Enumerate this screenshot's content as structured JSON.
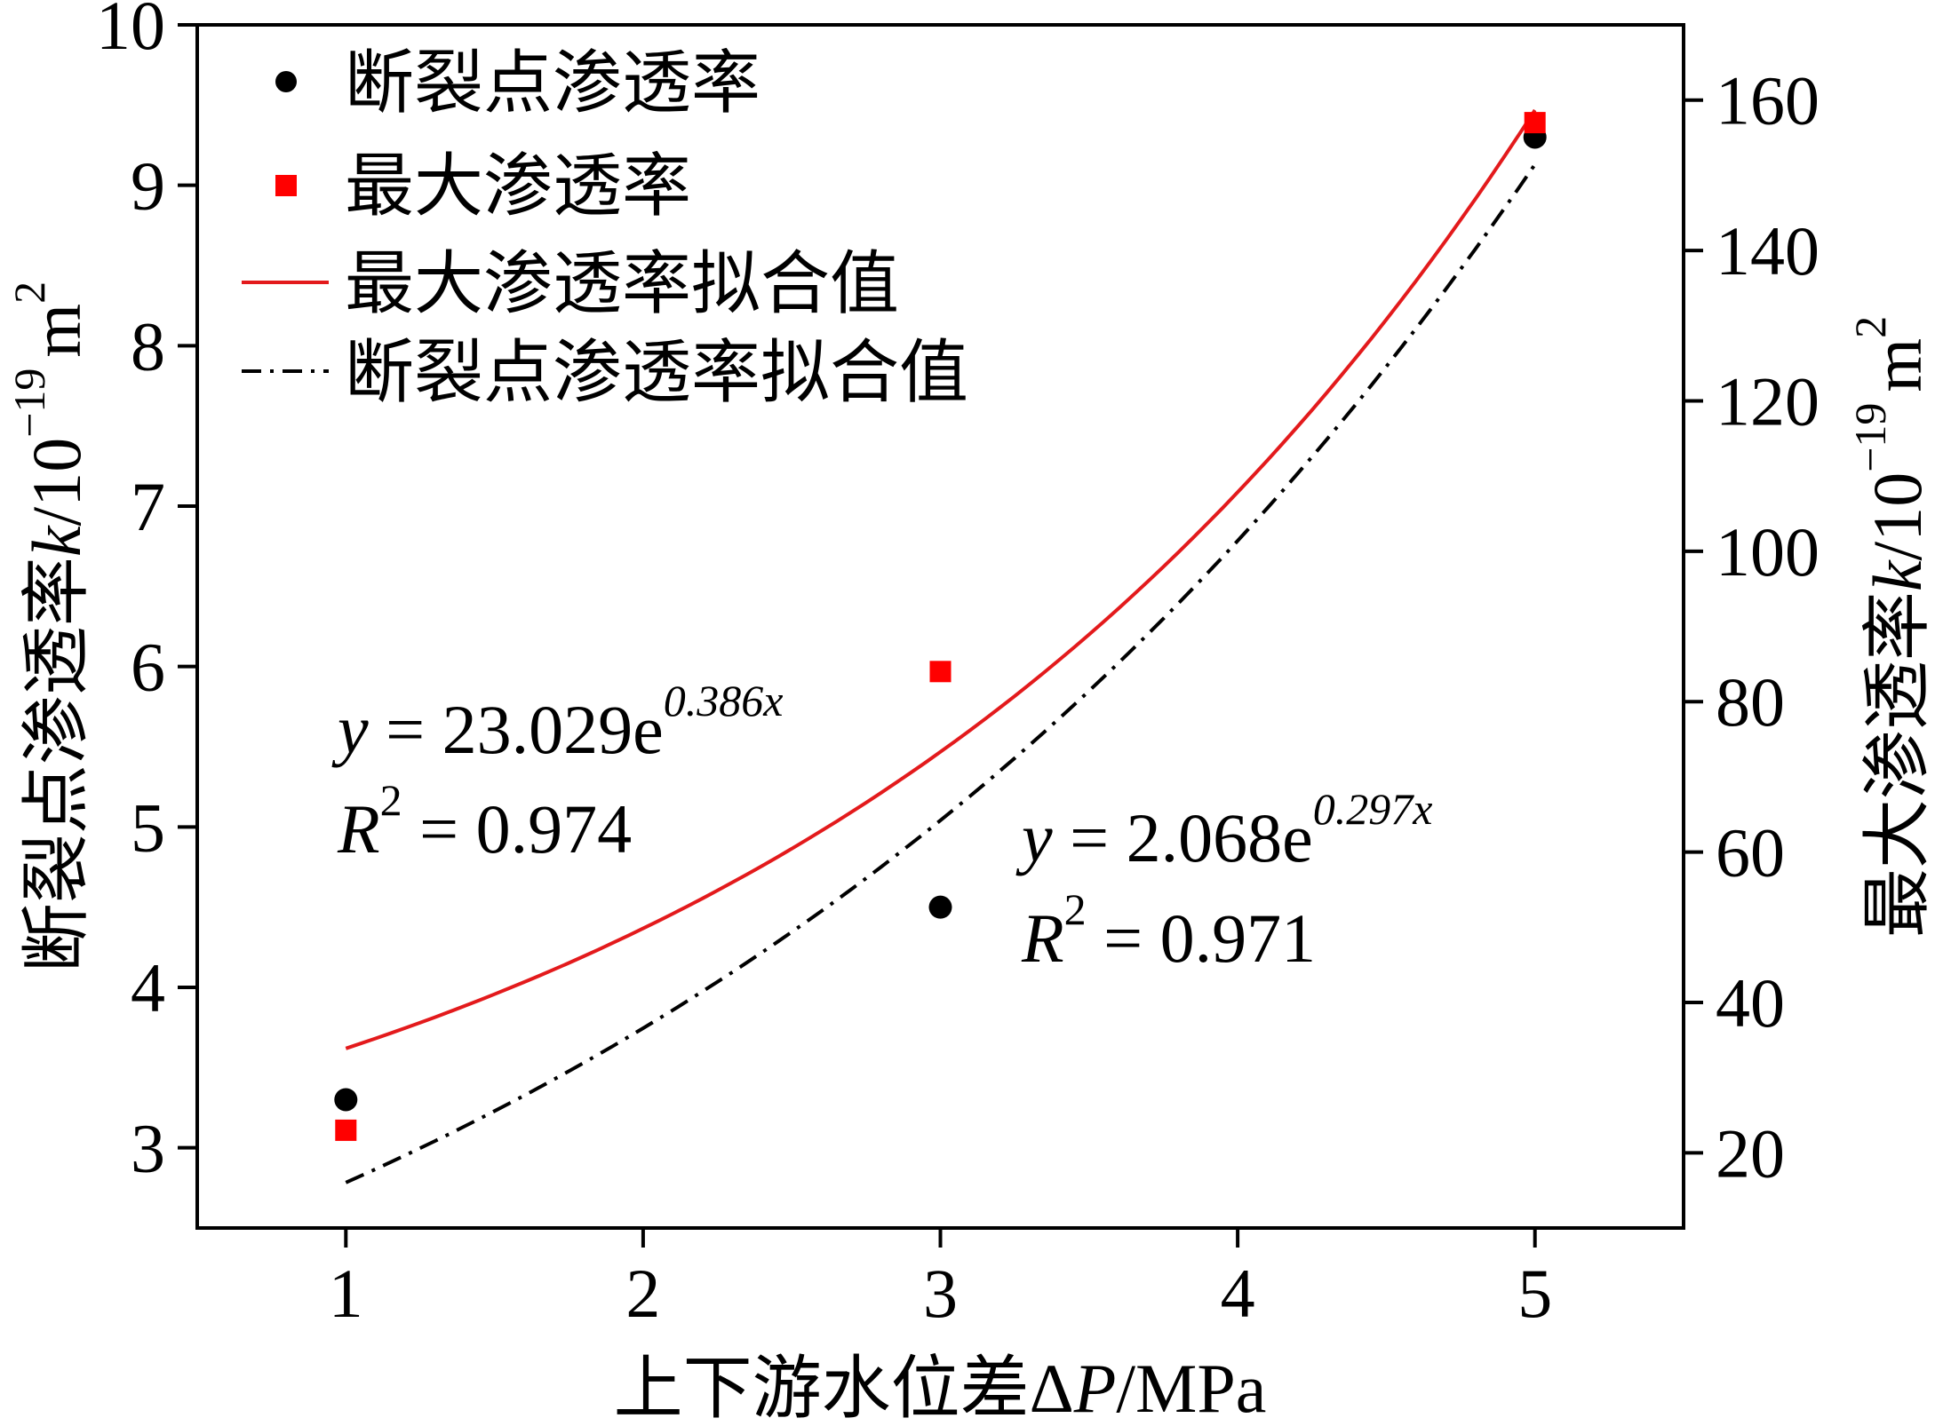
{
  "chart_data": {
    "type": "scatter",
    "xlabel_prefix": "上下游水位差Δ",
    "xlabel_var": "P",
    "xlabel_unit": "/MPa",
    "ylabel_left_prefix": "断裂点渗透率",
    "ylabel_left_var": "k",
    "ylabel_left_unit": "/10",
    "ylabel_left_exp": "−19",
    "ylabel_left_m": "m",
    "ylabel_left_m_exp": "2",
    "ylabel_right_prefix": "最大渗透率",
    "ylabel_right_var": "k",
    "ylabel_right_unit": "/10",
    "ylabel_right_exp": "−19",
    "ylabel_right_m": "m",
    "ylabel_right_m_exp": "2",
    "xlim": [
      0.5,
      5.5
    ],
    "ylim_left": [
      2.5,
      10
    ],
    "ylim_right": [
      10,
      170
    ],
    "x_ticks": [
      1,
      2,
      3,
      4,
      5
    ],
    "x_tick_labels": [
      "1",
      "2",
      "3",
      "4",
      "5"
    ],
    "y_left_ticks": [
      3,
      4,
      5,
      6,
      7,
      8,
      9,
      10
    ],
    "y_left_tick_labels": [
      "3",
      "4",
      "5",
      "6",
      "7",
      "8",
      "9",
      "10"
    ],
    "y_right_ticks": [
      20,
      40,
      60,
      80,
      100,
      120,
      140,
      160
    ],
    "y_right_tick_labels": [
      "20",
      "40",
      "60",
      "80",
      "100",
      "120",
      "140",
      "160"
    ],
    "series": [
      {
        "name": "断裂点渗透率",
        "axis": "left",
        "marker": "circle",
        "color": "#000000",
        "x": [
          1,
          3,
          5
        ],
        "y": [
          3.3,
          4.5,
          9.3
        ]
      },
      {
        "name": "最大渗透率",
        "axis": "right",
        "marker": "square",
        "color": "#ff0000",
        "x": [
          1,
          3,
          5
        ],
        "y": [
          23,
          84,
          157
        ]
      },
      {
        "name": "最大渗透率拟合值",
        "axis": "right",
        "style": "solid",
        "color": "#e31a1c",
        "fit": {
          "a": 23.029,
          "b": 0.386,
          "x_from": 1,
          "x_to": 5
        }
      },
      {
        "name": "断裂点渗透率拟合值",
        "axis": "left",
        "style": "dashdot",
        "color": "#000000",
        "fit": {
          "a": 2.068,
          "b": 0.297,
          "x_from": 1,
          "x_to": 5
        }
      }
    ],
    "annotations": [
      {
        "eq_var": "y",
        "eq_text": " = 23.029e",
        "eq_exp": "0.386x",
        "r2_var": "R",
        "r2_exp": "2",
        "r2_text": " = 0.974"
      },
      {
        "eq_var": "y",
        "eq_text": " = 2.068e",
        "eq_exp": "0.297x",
        "r2_var": "R",
        "r2_exp": "2",
        "r2_text": " = 0.971"
      }
    ],
    "legend_position": "top-left"
  }
}
